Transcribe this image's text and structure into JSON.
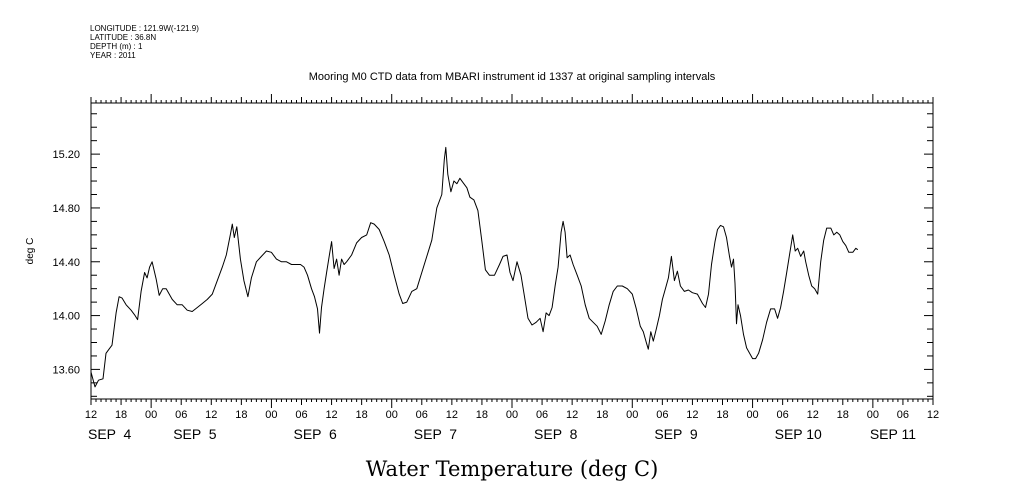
{
  "header": {
    "lines": [
      "LONGITUDE : 121.9W(-121.9)",
      "LATITUDE : 36.8N",
      "DEPTH (m) : 1",
      "YEAR : 2011"
    ]
  },
  "chart_data": {
    "type": "line",
    "title": "Mooring M0 CTD data from MBARI instrument id 1337 at original sampling intervals",
    "xlabel": "Water Temperature (deg C)",
    "ylabel": "deg C",
    "ylim": [
      13.38,
      15.58
    ],
    "xlim": [
      0,
      168
    ],
    "x_unit": "hours after SEP 3 12:00",
    "y_ticks": [
      13.6,
      14.0,
      14.4,
      14.8,
      15.2
    ],
    "y_tick_labels": [
      "13.60",
      "14.00",
      "14.40",
      "14.80",
      "15.20"
    ],
    "x_ticks": [
      0,
      6,
      12,
      18,
      24,
      30,
      36,
      42,
      48,
      54,
      60,
      66,
      72,
      78,
      84,
      90,
      96,
      102,
      108,
      114,
      120,
      126,
      132,
      138,
      144,
      150,
      156,
      162,
      168
    ],
    "x_tick_labels": [
      "12",
      "18",
      "00",
      "06",
      "12",
      "18",
      "00",
      "06",
      "12",
      "18",
      "00",
      "06",
      "12",
      "18",
      "00",
      "06",
      "12",
      "18",
      "00",
      "06",
      "12",
      "18",
      "00",
      "06",
      "12",
      "18",
      "00",
      "06",
      "12"
    ],
    "day_labels": [
      {
        "text": "SEP  4",
        "x": 0
      },
      {
        "text": "SEP  5",
        "x": 17
      },
      {
        "text": "SEP  6",
        "x": 41
      },
      {
        "text": "SEP  7",
        "x": 65
      },
      {
        "text": "SEP  8",
        "x": 89
      },
      {
        "text": "SEP  9",
        "x": 113
      },
      {
        "text": "SEP 10",
        "x": 137
      },
      {
        "text": "SEP 11",
        "x": 156
      }
    ],
    "series": [
      {
        "color": "#000000",
        "points": [
          [
            0.0,
            13.58
          ],
          [
            0.8,
            13.47
          ],
          [
            1.5,
            13.52
          ],
          [
            2.4,
            13.53
          ],
          [
            3.0,
            13.72
          ],
          [
            3.6,
            13.75
          ],
          [
            4.2,
            13.78
          ],
          [
            5.0,
            14.02
          ],
          [
            5.6,
            14.14
          ],
          [
            6.2,
            14.13
          ],
          [
            7.0,
            14.08
          ],
          [
            8.0,
            14.04
          ],
          [
            8.8,
            14.0
          ],
          [
            9.3,
            13.97
          ],
          [
            10.0,
            14.18
          ],
          [
            10.7,
            14.32
          ],
          [
            11.2,
            14.28
          ],
          [
            11.7,
            14.36
          ],
          [
            12.2,
            14.4
          ],
          [
            13.0,
            14.27
          ],
          [
            13.6,
            14.15
          ],
          [
            14.3,
            14.2
          ],
          [
            15.0,
            14.2
          ],
          [
            16.2,
            14.12
          ],
          [
            17.2,
            14.08
          ],
          [
            18.2,
            14.08
          ],
          [
            19.2,
            14.04
          ],
          [
            20.2,
            14.03
          ],
          [
            21.2,
            14.06
          ],
          [
            22.2,
            14.09
          ],
          [
            23.2,
            14.12
          ],
          [
            24.2,
            14.16
          ],
          [
            25.2,
            14.26
          ],
          [
            26.2,
            14.36
          ],
          [
            27.0,
            14.45
          ],
          [
            27.8,
            14.6
          ],
          [
            28.2,
            14.68
          ],
          [
            28.6,
            14.58
          ],
          [
            29.1,
            14.66
          ],
          [
            29.8,
            14.42
          ],
          [
            30.5,
            14.26
          ],
          [
            31.3,
            14.14
          ],
          [
            32.0,
            14.28
          ],
          [
            33.0,
            14.4
          ],
          [
            34.0,
            14.44
          ],
          [
            35.0,
            14.48
          ],
          [
            36.0,
            14.47
          ],
          [
            37.0,
            14.42
          ],
          [
            38.0,
            14.4
          ],
          [
            39.0,
            14.4
          ],
          [
            40.0,
            14.38
          ],
          [
            41.0,
            14.38
          ],
          [
            41.8,
            14.38
          ],
          [
            42.5,
            14.36
          ],
          [
            43.2,
            14.3
          ],
          [
            44.0,
            14.2
          ],
          [
            44.6,
            14.14
          ],
          [
            45.2,
            14.05
          ],
          [
            45.6,
            13.87
          ],
          [
            46.0,
            14.06
          ],
          [
            46.5,
            14.2
          ],
          [
            47.0,
            14.32
          ],
          [
            47.6,
            14.46
          ],
          [
            48.0,
            14.55
          ],
          [
            48.5,
            14.35
          ],
          [
            49.0,
            14.42
          ],
          [
            49.5,
            14.3
          ],
          [
            50.0,
            14.42
          ],
          [
            50.5,
            14.38
          ],
          [
            51.0,
            14.4
          ],
          [
            52.0,
            14.45
          ],
          [
            53.0,
            14.54
          ],
          [
            54.0,
            14.58
          ],
          [
            55.0,
            14.6
          ],
          [
            55.8,
            14.69
          ],
          [
            56.5,
            14.68
          ],
          [
            57.5,
            14.64
          ],
          [
            58.5,
            14.55
          ],
          [
            59.5,
            14.45
          ],
          [
            60.5,
            14.3
          ],
          [
            61.5,
            14.16
          ],
          [
            62.2,
            14.09
          ],
          [
            63.0,
            14.1
          ],
          [
            64.0,
            14.18
          ],
          [
            65.0,
            14.2
          ],
          [
            66.0,
            14.32
          ],
          [
            67.0,
            14.44
          ],
          [
            68.0,
            14.56
          ],
          [
            69.0,
            14.8
          ],
          [
            70.0,
            14.9
          ],
          [
            70.5,
            15.16
          ],
          [
            70.8,
            15.25
          ],
          [
            71.2,
            15.05
          ],
          [
            71.8,
            14.92
          ],
          [
            72.4,
            15.0
          ],
          [
            73.0,
            14.98
          ],
          [
            73.6,
            15.02
          ],
          [
            74.2,
            14.99
          ],
          [
            75.0,
            14.95
          ],
          [
            75.6,
            14.88
          ],
          [
            76.4,
            14.86
          ],
          [
            77.2,
            14.78
          ],
          [
            78.0,
            14.55
          ],
          [
            78.7,
            14.34
          ],
          [
            79.5,
            14.3
          ],
          [
            80.5,
            14.3
          ],
          [
            81.5,
            14.38
          ],
          [
            82.2,
            14.44
          ],
          [
            83.0,
            14.45
          ],
          [
            83.6,
            14.32
          ],
          [
            84.2,
            14.26
          ],
          [
            85.0,
            14.4
          ],
          [
            85.8,
            14.3
          ],
          [
            86.5,
            14.14
          ],
          [
            87.2,
            13.98
          ],
          [
            88.0,
            13.93
          ],
          [
            88.8,
            13.95
          ],
          [
            89.6,
            13.98
          ],
          [
            90.2,
            13.88
          ],
          [
            90.8,
            14.02
          ],
          [
            91.4,
            14.0
          ],
          [
            92.0,
            14.06
          ],
          [
            92.6,
            14.22
          ],
          [
            93.2,
            14.36
          ],
          [
            93.8,
            14.62
          ],
          [
            94.2,
            14.7
          ],
          [
            94.6,
            14.62
          ],
          [
            95.0,
            14.43
          ],
          [
            95.6,
            14.45
          ],
          [
            96.2,
            14.38
          ],
          [
            97.0,
            14.3
          ],
          [
            97.8,
            14.22
          ],
          [
            98.6,
            14.08
          ],
          [
            99.4,
            13.98
          ],
          [
            100.2,
            13.95
          ],
          [
            101.0,
            13.92
          ],
          [
            101.8,
            13.86
          ],
          [
            102.6,
            13.96
          ],
          [
            103.4,
            14.08
          ],
          [
            104.2,
            14.18
          ],
          [
            105.0,
            14.22
          ],
          [
            106.0,
            14.22
          ],
          [
            107.0,
            14.2
          ],
          [
            108.0,
            14.16
          ],
          [
            108.8,
            14.05
          ],
          [
            109.6,
            13.92
          ],
          [
            110.2,
            13.88
          ],
          [
            110.8,
            13.8
          ],
          [
            111.2,
            13.75
          ],
          [
            111.7,
            13.88
          ],
          [
            112.2,
            13.81
          ],
          [
            112.8,
            13.9
          ],
          [
            113.4,
            14.0
          ],
          [
            114.0,
            14.12
          ],
          [
            114.6,
            14.2
          ],
          [
            115.2,
            14.28
          ],
          [
            115.8,
            14.44
          ],
          [
            116.4,
            14.26
          ],
          [
            117.0,
            14.33
          ],
          [
            117.6,
            14.22
          ],
          [
            118.4,
            14.18
          ],
          [
            119.2,
            14.19
          ],
          [
            120.0,
            14.17
          ],
          [
            121.0,
            14.16
          ],
          [
            122.0,
            14.09
          ],
          [
            122.6,
            14.06
          ],
          [
            123.2,
            14.16
          ],
          [
            123.8,
            14.38
          ],
          [
            124.5,
            14.55
          ],
          [
            125.0,
            14.64
          ],
          [
            125.6,
            14.67
          ],
          [
            126.2,
            14.66
          ],
          [
            126.8,
            14.58
          ],
          [
            127.4,
            14.44
          ],
          [
            127.8,
            14.36
          ],
          [
            128.2,
            14.42
          ],
          [
            128.5,
            14.24
          ],
          [
            128.8,
            13.94
          ],
          [
            129.1,
            14.08
          ],
          [
            129.6,
            14.0
          ],
          [
            130.2,
            13.86
          ],
          [
            130.8,
            13.76
          ],
          [
            131.4,
            13.72
          ],
          [
            132.0,
            13.68
          ],
          [
            132.6,
            13.68
          ],
          [
            133.2,
            13.72
          ],
          [
            134.0,
            13.82
          ],
          [
            134.8,
            13.95
          ],
          [
            135.6,
            14.05
          ],
          [
            136.4,
            14.05
          ],
          [
            137.0,
            13.98
          ],
          [
            137.6,
            14.06
          ],
          [
            138.2,
            14.18
          ],
          [
            138.8,
            14.32
          ],
          [
            139.4,
            14.46
          ],
          [
            140.0,
            14.6
          ],
          [
            140.5,
            14.48
          ],
          [
            141.0,
            14.5
          ],
          [
            141.6,
            14.44
          ],
          [
            142.2,
            14.48
          ],
          [
            142.6,
            14.4
          ],
          [
            143.2,
            14.3
          ],
          [
            143.8,
            14.22
          ],
          [
            144.4,
            14.2
          ],
          [
            145.0,
            14.16
          ],
          [
            145.6,
            14.4
          ],
          [
            146.2,
            14.56
          ],
          [
            146.8,
            14.65
          ],
          [
            147.6,
            14.65
          ],
          [
            148.2,
            14.6
          ],
          [
            148.8,
            14.62
          ],
          [
            149.4,
            14.6
          ],
          [
            150.0,
            14.55
          ],
          [
            150.6,
            14.52
          ],
          [
            151.2,
            14.47
          ],
          [
            152.0,
            14.47
          ],
          [
            152.6,
            14.5
          ],
          [
            153.0,
            14.49
          ]
        ]
      }
    ]
  }
}
